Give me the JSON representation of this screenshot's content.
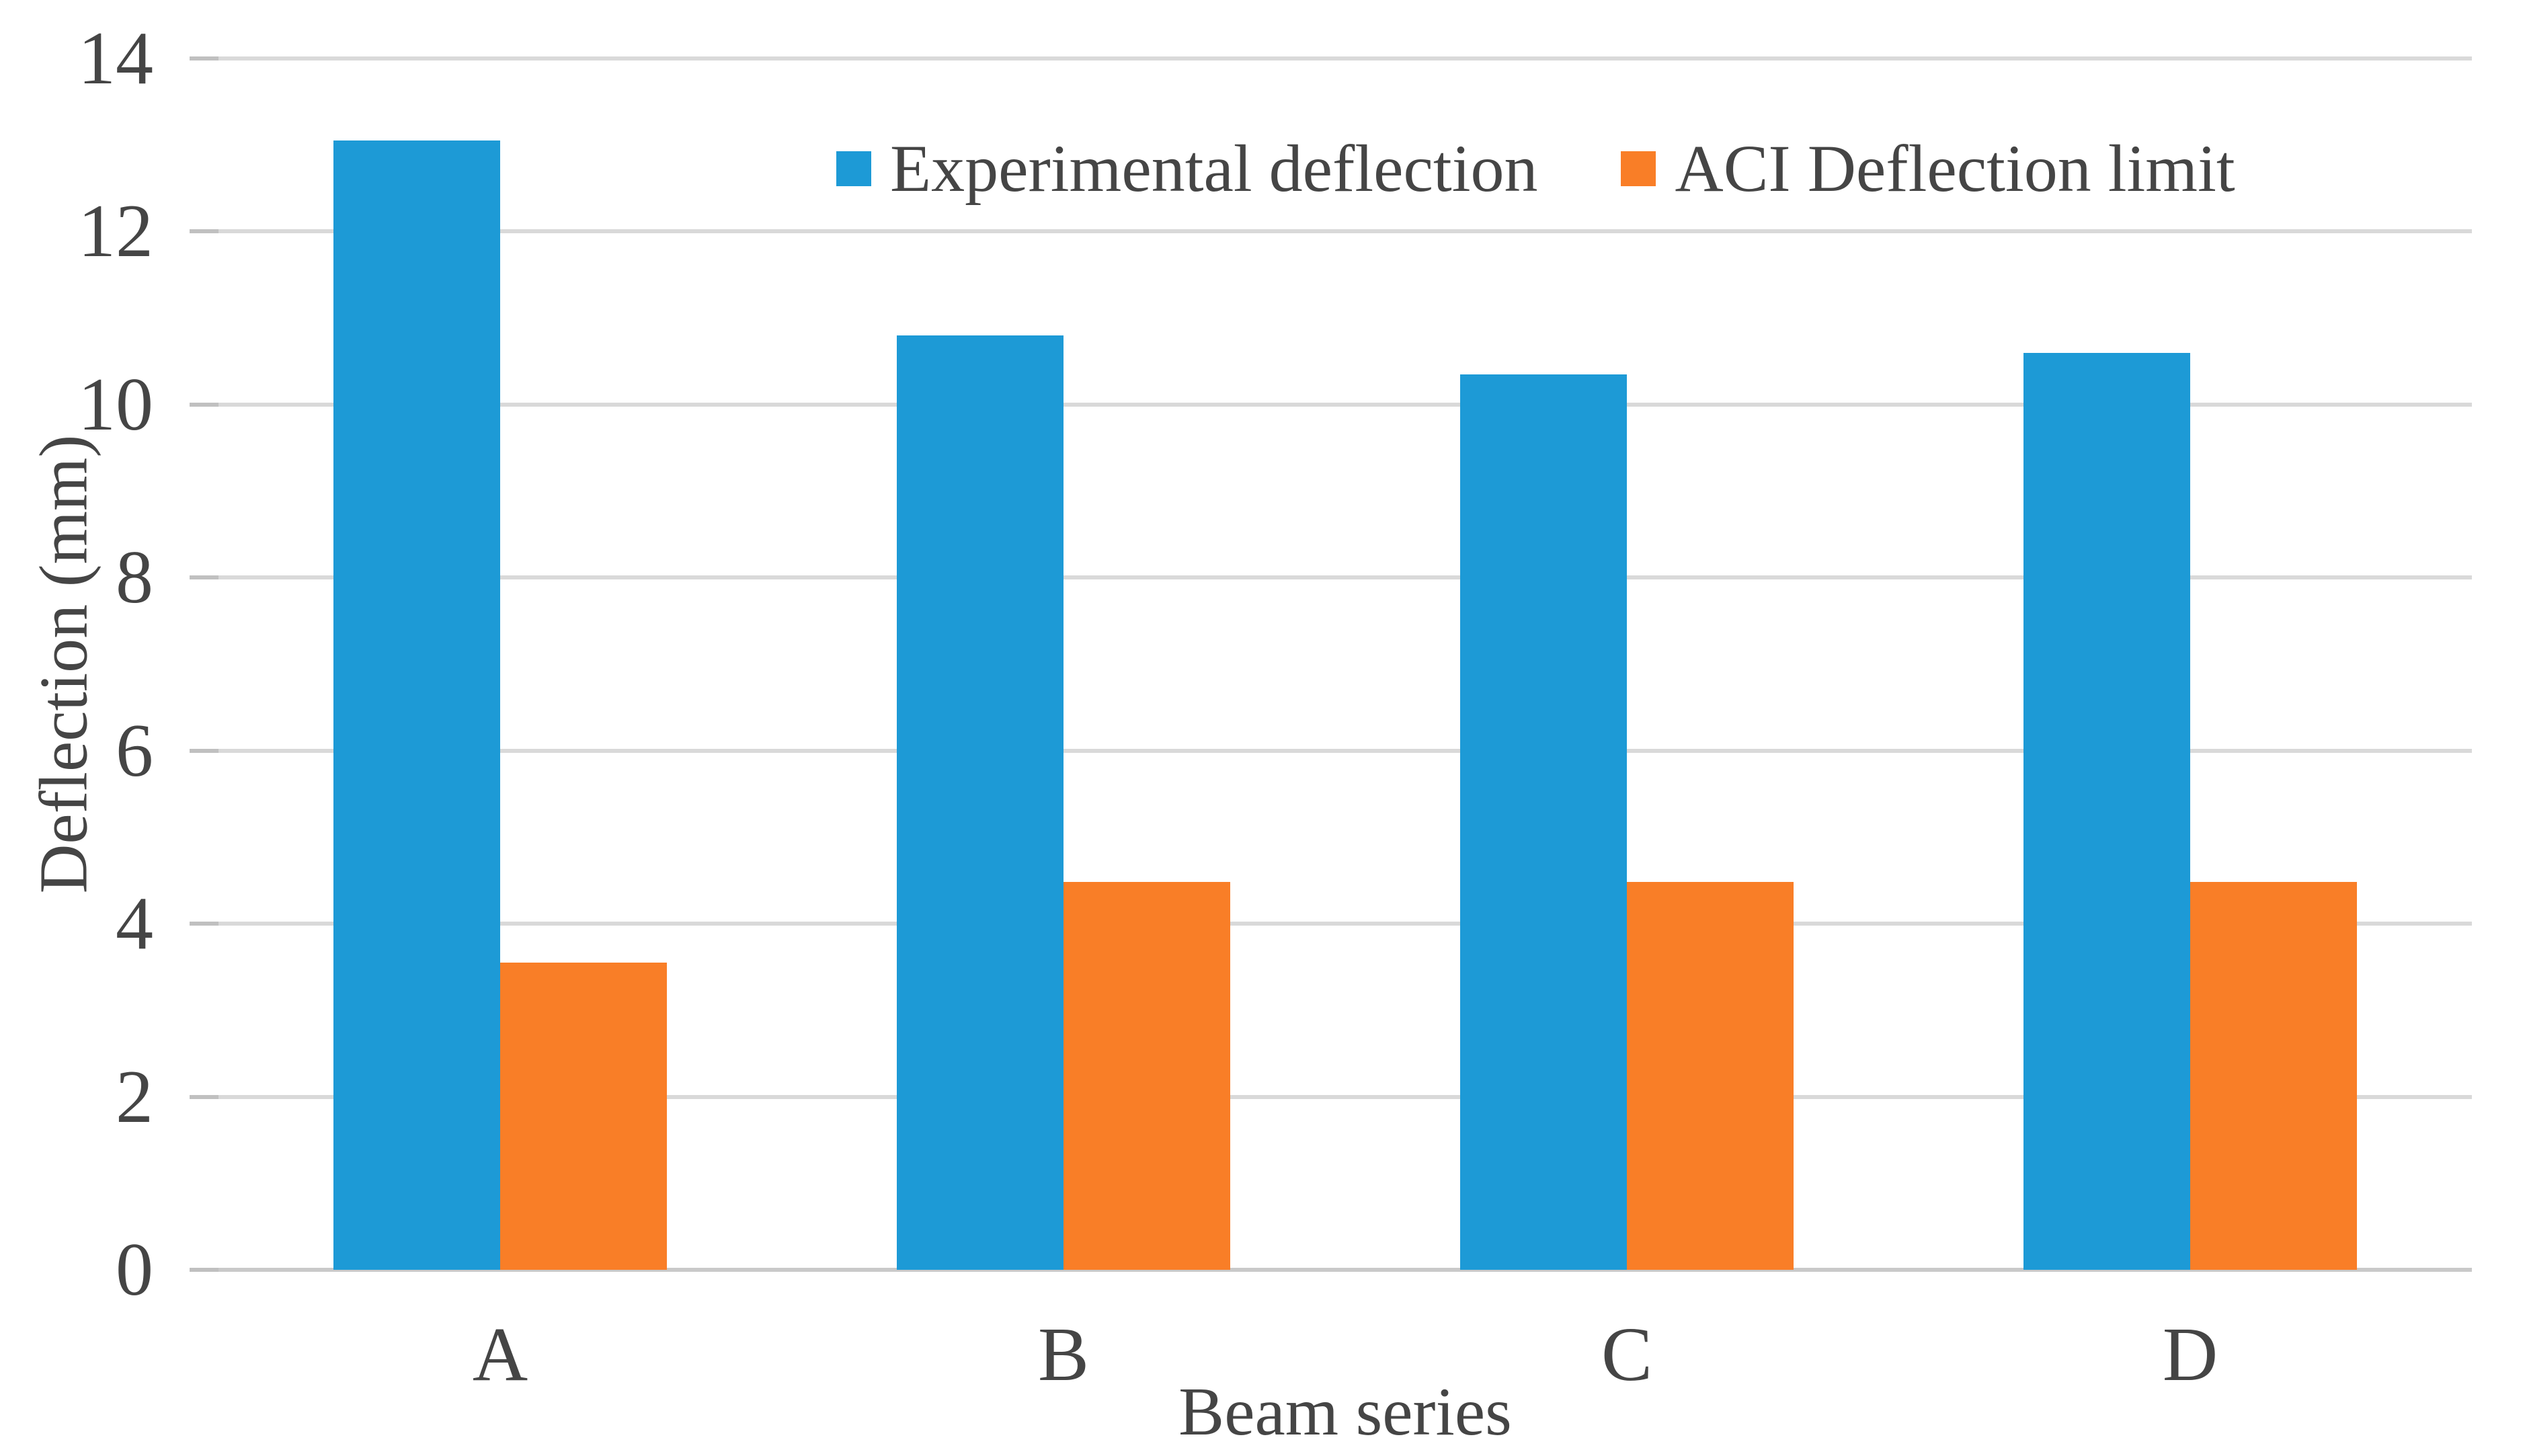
{
  "chart_data": {
    "type": "bar",
    "title": "",
    "categories": [
      "A",
      "B",
      "C",
      "D"
    ],
    "series": [
      {
        "name": "Experimental deflection",
        "color": "#1d9ad6",
        "values": [
          13.05,
          10.8,
          10.35,
          10.6
        ]
      },
      {
        "name": "ACI Deflection limit",
        "color": "#f97e27",
        "values": [
          3.55,
          4.48,
          4.48,
          4.48
        ]
      }
    ],
    "xlabel": "Beam series",
    "ylabel": "Deflection (mm)",
    "ylim": [
      0,
      14
    ],
    "ytick_step": 2,
    "yticks": [
      "0",
      "2",
      "4",
      "6",
      "8",
      "10",
      "12",
      "14"
    ],
    "grid": true,
    "gridline_color": "#d9d9d9",
    "baseline_color": "#c9c9c9",
    "tick_color": "#c0c0c0",
    "text_color": "#454545",
    "legend_position": "top-center"
  }
}
